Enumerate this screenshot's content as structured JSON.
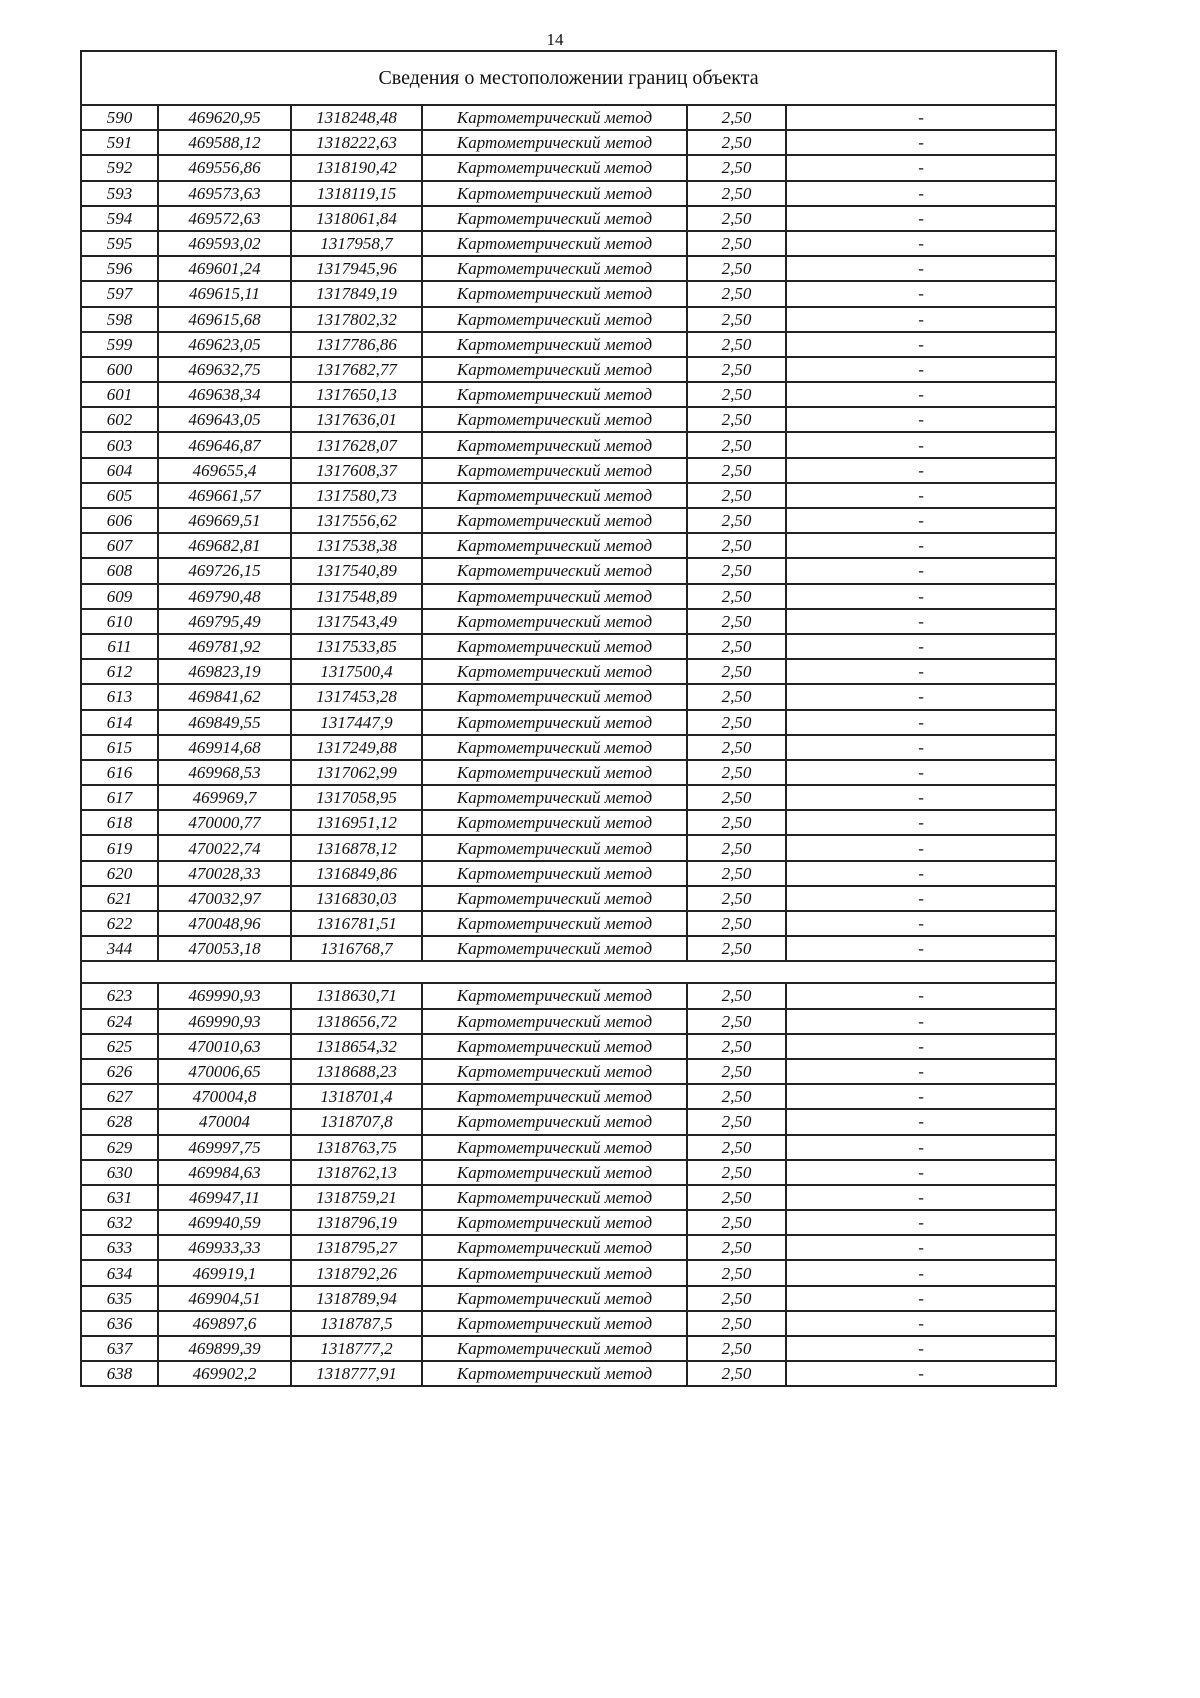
{
  "page_number": "14",
  "title": "Сведения о местоположении границ объекта",
  "groups": [
    [
      [
        "590",
        "469620,95",
        "1318248,48",
        "Картометрический метод",
        "2,50",
        "-"
      ],
      [
        "591",
        "469588,12",
        "1318222,63",
        "Картометрический метод",
        "2,50",
        "-"
      ],
      [
        "592",
        "469556,86",
        "1318190,42",
        "Картометрический метод",
        "2,50",
        "-"
      ],
      [
        "593",
        "469573,63",
        "1318119,15",
        "Картометрический метод",
        "2,50",
        "-"
      ],
      [
        "594",
        "469572,63",
        "1318061,84",
        "Картометрический метод",
        "2,50",
        "-"
      ],
      [
        "595",
        "469593,02",
        "1317958,7",
        "Картометрический метод",
        "2,50",
        "-"
      ],
      [
        "596",
        "469601,24",
        "1317945,96",
        "Картометрический метод",
        "2,50",
        "-"
      ],
      [
        "597",
        "469615,11",
        "1317849,19",
        "Картометрический метод",
        "2,50",
        "-"
      ],
      [
        "598",
        "469615,68",
        "1317802,32",
        "Картометрический метод",
        "2,50",
        "-"
      ],
      [
        "599",
        "469623,05",
        "1317786,86",
        "Картометрический метод",
        "2,50",
        "-"
      ],
      [
        "600",
        "469632,75",
        "1317682,77",
        "Картометрический метод",
        "2,50",
        "-"
      ],
      [
        "601",
        "469638,34",
        "1317650,13",
        "Картометрический метод",
        "2,50",
        "-"
      ],
      [
        "602",
        "469643,05",
        "1317636,01",
        "Картометрический метод",
        "2,50",
        "-"
      ],
      [
        "603",
        "469646,87",
        "1317628,07",
        "Картометрический метод",
        "2,50",
        "-"
      ],
      [
        "604",
        "469655,4",
        "1317608,37",
        "Картометрический метод",
        "2,50",
        "-"
      ],
      [
        "605",
        "469661,57",
        "1317580,73",
        "Картометрический метод",
        "2,50",
        "-"
      ],
      [
        "606",
        "469669,51",
        "1317556,62",
        "Картометрический метод",
        "2,50",
        "-"
      ],
      [
        "607",
        "469682,81",
        "1317538,38",
        "Картометрический метод",
        "2,50",
        "-"
      ],
      [
        "608",
        "469726,15",
        "1317540,89",
        "Картометрический метод",
        "2,50",
        "-"
      ],
      [
        "609",
        "469790,48",
        "1317548,89",
        "Картометрический метод",
        "2,50",
        "-"
      ],
      [
        "610",
        "469795,49",
        "1317543,49",
        "Картометрический метод",
        "2,50",
        "-"
      ],
      [
        "611",
        "469781,92",
        "1317533,85",
        "Картометрический метод",
        "2,50",
        "-"
      ],
      [
        "612",
        "469823,19",
        "1317500,4",
        "Картометрический метод",
        "2,50",
        "-"
      ],
      [
        "613",
        "469841,62",
        "1317453,28",
        "Картометрический метод",
        "2,50",
        "-"
      ],
      [
        "614",
        "469849,55",
        "1317447,9",
        "Картометрический метод",
        "2,50",
        "-"
      ],
      [
        "615",
        "469914,68",
        "1317249,88",
        "Картометрический метод",
        "2,50",
        "-"
      ],
      [
        "616",
        "469968,53",
        "1317062,99",
        "Картометрический метод",
        "2,50",
        "-"
      ],
      [
        "617",
        "469969,7",
        "1317058,95",
        "Картометрический метод",
        "2,50",
        "-"
      ],
      [
        "618",
        "470000,77",
        "1316951,12",
        "Картометрический метод",
        "2,50",
        "-"
      ],
      [
        "619",
        "470022,74",
        "1316878,12",
        "Картометрический метод",
        "2,50",
        "-"
      ],
      [
        "620",
        "470028,33",
        "1316849,86",
        "Картометрический метод",
        "2,50",
        "-"
      ],
      [
        "621",
        "470032,97",
        "1316830,03",
        "Картометрический метод",
        "2,50",
        "-"
      ],
      [
        "622",
        "470048,96",
        "1316781,51",
        "Картометрический метод",
        "2,50",
        "-"
      ],
      [
        "344",
        "470053,18",
        "1316768,7",
        "Картометрический метод",
        "2,50",
        "-"
      ]
    ],
    [
      [
        "623",
        "469990,93",
        "1318630,71",
        "Картометрический метод",
        "2,50",
        "-"
      ],
      [
        "624",
        "469990,93",
        "1318656,72",
        "Картометрический метод",
        "2,50",
        "-"
      ],
      [
        "625",
        "470010,63",
        "1318654,32",
        "Картометрический метод",
        "2,50",
        "-"
      ],
      [
        "626",
        "470006,65",
        "1318688,23",
        "Картометрический метод",
        "2,50",
        "-"
      ],
      [
        "627",
        "470004,8",
        "1318701,4",
        "Картометрический метод",
        "2,50",
        "-"
      ],
      [
        "628",
        "470004",
        "1318707,8",
        "Картометрический метод",
        "2,50",
        "-"
      ],
      [
        "629",
        "469997,75",
        "1318763,75",
        "Картометрический метод",
        "2,50",
        "-"
      ],
      [
        "630",
        "469984,63",
        "1318762,13",
        "Картометрический метод",
        "2,50",
        "-"
      ],
      [
        "631",
        "469947,11",
        "1318759,21",
        "Картометрический метод",
        "2,50",
        "-"
      ],
      [
        "632",
        "469940,59",
        "1318796,19",
        "Картометрический метод",
        "2,50",
        "-"
      ],
      [
        "633",
        "469933,33",
        "1318795,27",
        "Картометрический метод",
        "2,50",
        "-"
      ],
      [
        "634",
        "469919,1",
        "1318792,26",
        "Картометрический метод",
        "2,50",
        "-"
      ],
      [
        "635",
        "469904,51",
        "1318789,94",
        "Картометрический метод",
        "2,50",
        "-"
      ],
      [
        "636",
        "469897,6",
        "1318787,5",
        "Картометрический метод",
        "2,50",
        "-"
      ],
      [
        "637",
        "469899,39",
        "1318777,2",
        "Картометрический метод",
        "2,50",
        "-"
      ],
      [
        "638",
        "469902,2",
        "1318777,91",
        "Картометрический метод",
        "2,50",
        "-"
      ]
    ]
  ]
}
